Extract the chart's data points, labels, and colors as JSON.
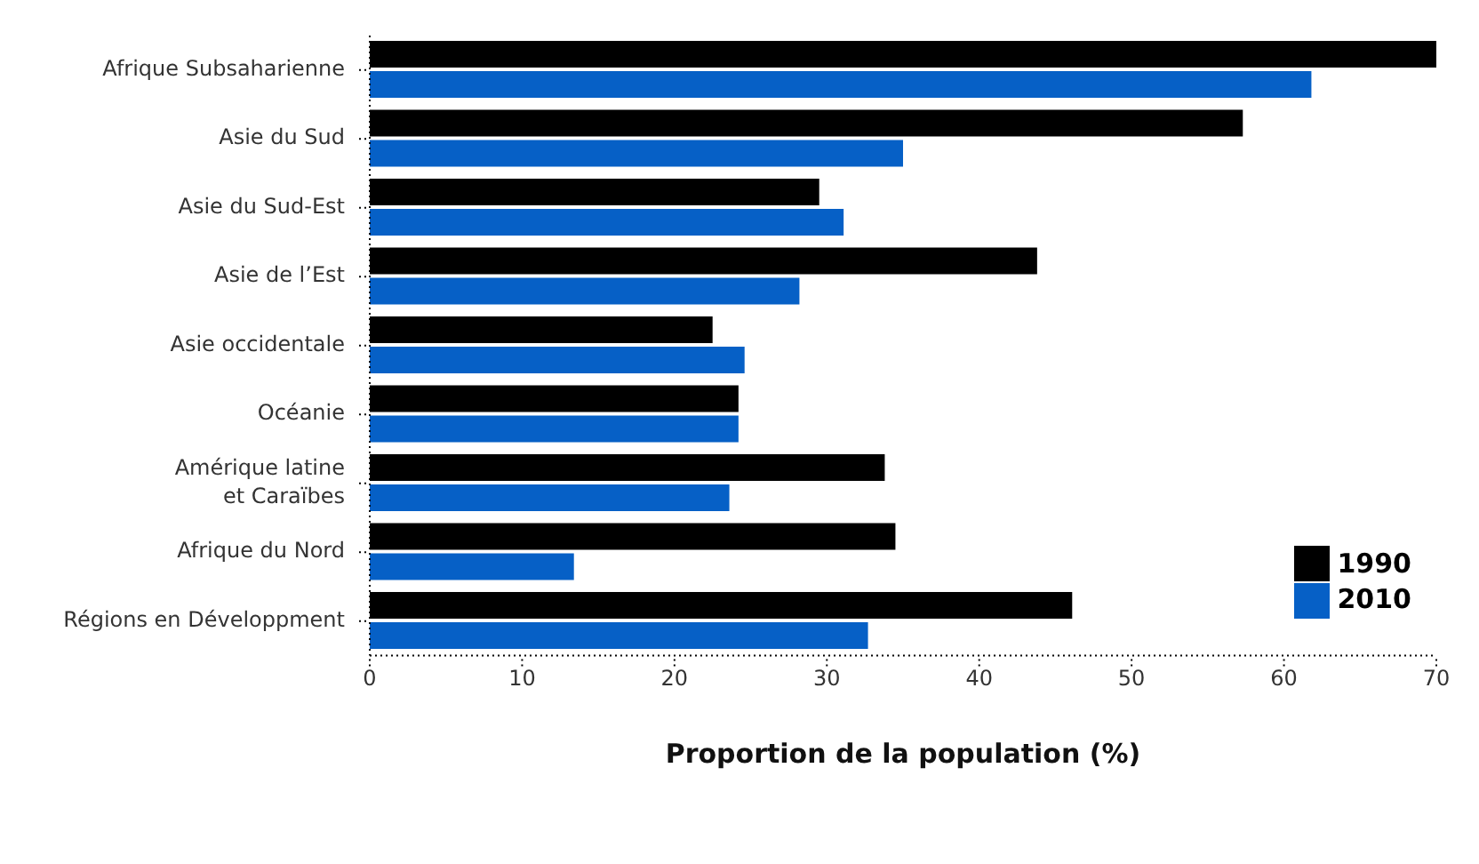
{
  "chart_data": {
    "type": "bar",
    "orientation": "horizontal",
    "xlabel": "Proportion de la population (%)",
    "categories": [
      "Afrique Subsaharienne",
      "Asie du Sud",
      "Asie du Sud-Est",
      "Asie de l’Est",
      "Asie occidentale",
      "Océanie",
      "Amérique latine\net Caraïbes",
      "Afrique du Nord",
      "Régions en Développment"
    ],
    "series": [
      {
        "name": "1990",
        "color": "#000000",
        "values": [
          70,
          57.3,
          29.5,
          43.8,
          22.5,
          24.2,
          33.8,
          34.5,
          46.1
        ]
      },
      {
        "name": "2010",
        "color": "#0660c6",
        "values": [
          61.8,
          35,
          31.1,
          28.2,
          24.6,
          24.2,
          23.6,
          13.4,
          32.7
        ]
      }
    ],
    "xlim": [
      0,
      70
    ],
    "xticks": [
      0,
      10,
      20,
      30,
      40,
      50,
      60,
      70
    ],
    "grid": false,
    "legend": "bottom right"
  }
}
